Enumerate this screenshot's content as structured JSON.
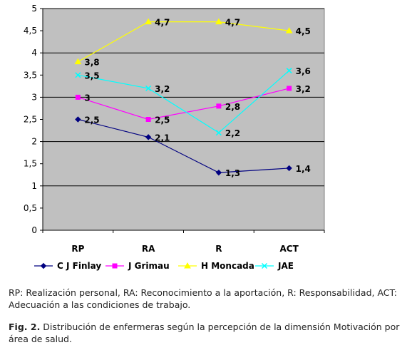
{
  "chart_data": {
    "type": "line",
    "categories": [
      "RP",
      "RA",
      "R",
      "ACT"
    ],
    "ylim": [
      0,
      5
    ],
    "yticks": [
      "0",
      "0,5",
      "1",
      "1,5",
      "2",
      "2,5",
      "3",
      "3,5",
      "4",
      "4,5",
      "5"
    ],
    "grid": true,
    "legend_position": "bottom",
    "series": [
      {
        "name": "C J Finlay",
        "values": [
          2.5,
          2.1,
          1.3,
          1.4
        ],
        "labels": [
          "2,5",
          "2,1",
          "1,3",
          "1,4"
        ],
        "color": "#000080",
        "marker": "diamond"
      },
      {
        "name": "J Grimau",
        "values": [
          3,
          2.5,
          2.8,
          3.2
        ],
        "labels": [
          "3",
          "2,5",
          "2,8",
          "3,2"
        ],
        "color": "#ff00ff",
        "marker": "square"
      },
      {
        "name": "H Moncada",
        "values": [
          3.8,
          4.7,
          4.7,
          4.5
        ],
        "labels": [
          "3,8",
          "4,7",
          "4,7",
          "4,5"
        ],
        "color": "#ffff00",
        "marker": "triangle"
      },
      {
        "name": "JAE",
        "values": [
          3.5,
          3.2,
          2.2,
          3.6
        ],
        "labels": [
          "3,5",
          "3,2",
          "2,2",
          "3,6"
        ],
        "color": "#00ffff",
        "marker": "x"
      }
    ],
    "plot_background": "#c0c0c0"
  },
  "abbreviations_text": "RP: Realización personal, RA: Reconocimiento a la aportación, R: Responsabilidad, ACT: Adecuación a las condiciones de trabajo.",
  "caption": {
    "label": "Fig. 2.",
    "text": " Distribución de enfermeras según la percepción de la dimensión Motivación por área de salud."
  }
}
